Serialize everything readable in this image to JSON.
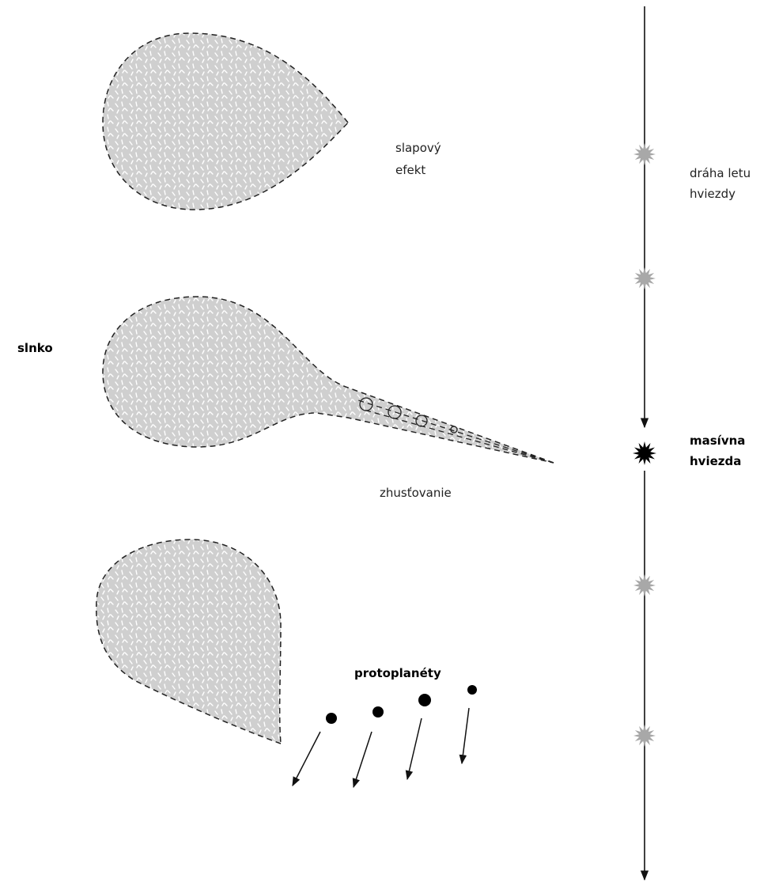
{
  "labels": {
    "tidal_effect": [
      "slapový",
      "efekt"
    ],
    "star_path": [
      "dráha letu",
      "hviezdy"
    ],
    "sun": "slnko",
    "condensation": "zhusťovanie",
    "massive_star": [
      "masívna",
      "hviezda"
    ],
    "protoplanets": "protoplanéty"
  }
}
